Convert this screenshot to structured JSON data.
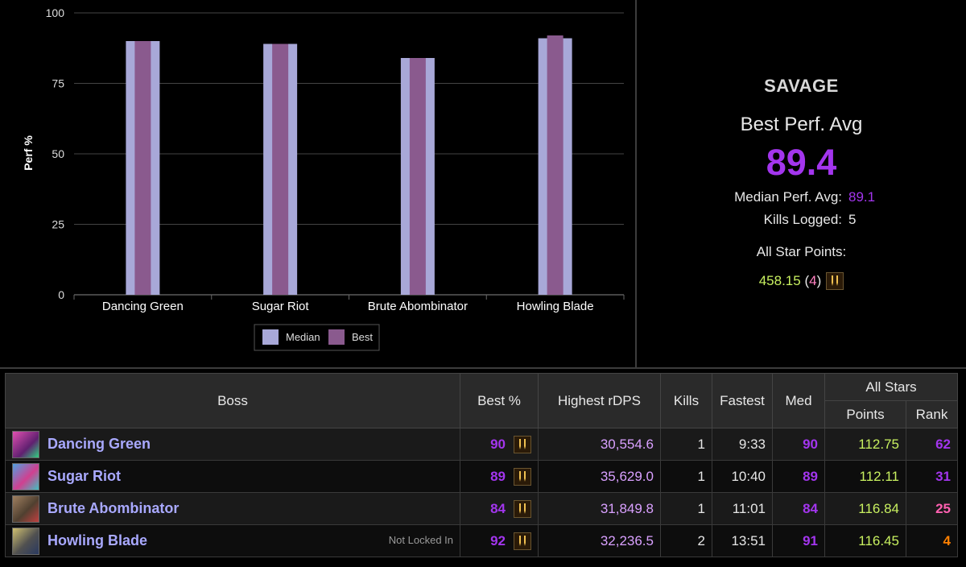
{
  "colors": {
    "median": "#a8a8d8",
    "best": "#8a5a8e",
    "accent_purple": "#a335ee",
    "points_green": "#c8f060",
    "boss_blue": "#a9a9ff"
  },
  "chart_data": {
    "type": "bar",
    "categories": [
      "Dancing Green",
      "Sugar Riot",
      "Brute Abombinator",
      "Howling Blade"
    ],
    "series": [
      {
        "name": "Median",
        "values": [
          90,
          89,
          84,
          91
        ]
      },
      {
        "name": "Best",
        "values": [
          90,
          89,
          84,
          92
        ]
      }
    ],
    "ylabel": "Perf %",
    "xlabel": "",
    "yticks": [
      0,
      25,
      50,
      75,
      100
    ],
    "ylim": [
      0,
      100
    ],
    "legend": [
      "Median",
      "Best"
    ],
    "legend_position": "bottom-center"
  },
  "summary": {
    "difficulty": "SAVAGE",
    "best_avg_label": "Best Perf. Avg",
    "best_avg_value": "89.4",
    "median_label": "Median Perf. Avg:",
    "median_value": "89.1",
    "kills_label": "Kills Logged:",
    "kills_value": "5",
    "asp_label": "All Star Points:",
    "asp_points": "458.15",
    "asp_open": "(",
    "asp_rank": "4",
    "asp_close": ")",
    "asp_icon": "all-star-icon"
  },
  "table": {
    "headers": {
      "boss": "Boss",
      "best": "Best %",
      "rdps": "Highest rDPS",
      "kills": "Kills",
      "fastest": "Fastest",
      "med": "Med",
      "allstars": "All Stars",
      "points": "Points",
      "rank": "Rank"
    },
    "rows": [
      {
        "name": "Dancing Green",
        "note": "",
        "best": "90",
        "rdps": "30,554.6",
        "kills": "1",
        "fastest": "9:33",
        "med": "90",
        "points": "112.75",
        "rank": "62",
        "icon_color": "#c03c9c"
      },
      {
        "name": "Sugar Riot",
        "note": "",
        "best": "89",
        "rdps": "35,629.0",
        "kills": "1",
        "fastest": "10:40",
        "med": "89",
        "points": "112.11",
        "rank": "31",
        "icon_color": "#5aa0d0"
      },
      {
        "name": "Brute Abombinator",
        "note": "",
        "best": "84",
        "rdps": "31,849.8",
        "kills": "1",
        "fastest": "11:01",
        "med": "84",
        "points": "116.84",
        "rank": "25",
        "icon_color": "#7a6048"
      },
      {
        "name": "Howling Blade",
        "note": "Not Locked In",
        "best": "92",
        "rdps": "32,236.5",
        "kills": "2",
        "fastest": "13:51",
        "med": "91",
        "points": "116.45",
        "rank": "4",
        "icon_color": "#b0a060"
      }
    ]
  }
}
